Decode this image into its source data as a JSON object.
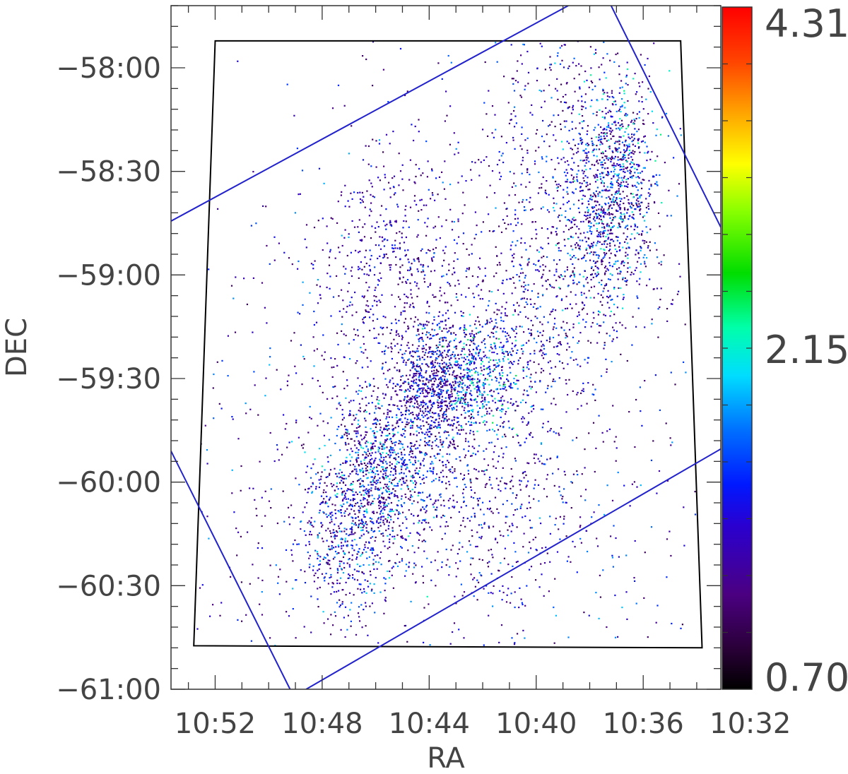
{
  "chart_data": {
    "type": "scatter",
    "title": "",
    "xlabel": "RA",
    "ylabel": "DEC",
    "x_ticks": [
      "10:52",
      "10:48",
      "10:44",
      "10:40",
      "10:36",
      "10:32"
    ],
    "x_tick_values_min": [
      652,
      648,
      644,
      640,
      636,
      632
    ],
    "x_range_min": [
      653.65,
      633.1
    ],
    "y_ticks": [
      "−58:00",
      "−58:30",
      "−59:00",
      "−59:30",
      "−60:00",
      "−60:30",
      "−61:00"
    ],
    "y_tick_values_deg": [
      -58.0,
      -58.5,
      -59.0,
      -59.5,
      -60.0,
      -60.5,
      -61.0
    ],
    "y_range_deg": [
      -61.0,
      -57.7
    ],
    "x_axis_reversed": true,
    "grid": false,
    "colorbar": {
      "min_label": "0.70",
      "mid_label": "2.15",
      "max_label": "4.31",
      "min": 0.7,
      "mid": 2.15,
      "max": 4.31,
      "colormap": "rainbow"
    },
    "footprint_outline": {
      "color": "#000000",
      "vertices_ra_dec": [
        [
          652.0,
          -57.87
        ],
        [
          634.6,
          -57.87
        ],
        [
          633.8,
          -60.8
        ],
        [
          652.8,
          -60.79
        ]
      ]
    },
    "survey_boundaries": {
      "color": "#2222cc",
      "lines_ra_dec": [
        [
          [
            653.65,
            -58.74
          ],
          [
            638.8,
            -57.7
          ]
        ],
        [
          [
            637.2,
            -57.7
          ],
          [
            633.1,
            -58.77
          ]
        ],
        [
          [
            653.65,
            -59.85
          ],
          [
            649.2,
            -61.0
          ]
        ],
        [
          [
            648.6,
            -61.0
          ],
          [
            633.1,
            -59.84
          ]
        ]
      ]
    },
    "point_clusters": [
      {
        "ra": 643.8,
        "dec": -59.55,
        "sigma_ra": 0.85,
        "sigma_dec": 0.17,
        "n": 850,
        "cmin": 1.05,
        "cmax": 2.2
      },
      {
        "ra": 645.8,
        "dec": -59.95,
        "sigma_ra": 1.1,
        "sigma_dec": 0.22,
        "n": 950,
        "cmin": 1.05,
        "cmax": 2.6
      },
      {
        "ra": 647.2,
        "dec": -60.3,
        "sigma_ra": 0.9,
        "sigma_dec": 0.18,
        "n": 400,
        "cmin": 1.1,
        "cmax": 2.4
      },
      {
        "ra": 642.0,
        "dec": -59.5,
        "sigma_ra": 0.9,
        "sigma_dec": 0.14,
        "n": 420,
        "cmin": 1.4,
        "cmax": 2.8
      },
      {
        "ra": 637.3,
        "dec": -58.72,
        "sigma_ra": 1.0,
        "sigma_dec": 0.26,
        "n": 900,
        "cmin": 1.05,
        "cmax": 2.6
      },
      {
        "ra": 637.0,
        "dec": -58.4,
        "sigma_ra": 0.7,
        "sigma_dec": 0.2,
        "n": 350,
        "cmin": 1.1,
        "cmax": 2.7
      },
      {
        "ra": 645.4,
        "dec": -58.95,
        "sigma_ra": 1.4,
        "sigma_dec": 0.28,
        "n": 500,
        "cmin": 1.05,
        "cmax": 1.9
      },
      {
        "ra": 640.2,
        "dec": -59.2,
        "sigma_ra": 1.2,
        "sigma_dec": 0.3,
        "n": 420,
        "cmin": 1.05,
        "cmax": 2.1
      },
      {
        "ra": 641.8,
        "dec": -60.05,
        "sigma_ra": 1.5,
        "sigma_dec": 0.25,
        "n": 300,
        "cmin": 1.05,
        "cmax": 2.1
      },
      {
        "ra": 639.5,
        "dec": -58.3,
        "sigma_ra": 1.6,
        "sigma_dec": 0.35,
        "n": 350,
        "cmin": 1.05,
        "cmax": 2.2
      },
      {
        "ra": 643.5,
        "dec": -59.85,
        "sigma_ra": 5.5,
        "sigma_dec": 0.8,
        "n": 1400,
        "cmin": 1.05,
        "cmax": 2.3
      }
    ]
  }
}
